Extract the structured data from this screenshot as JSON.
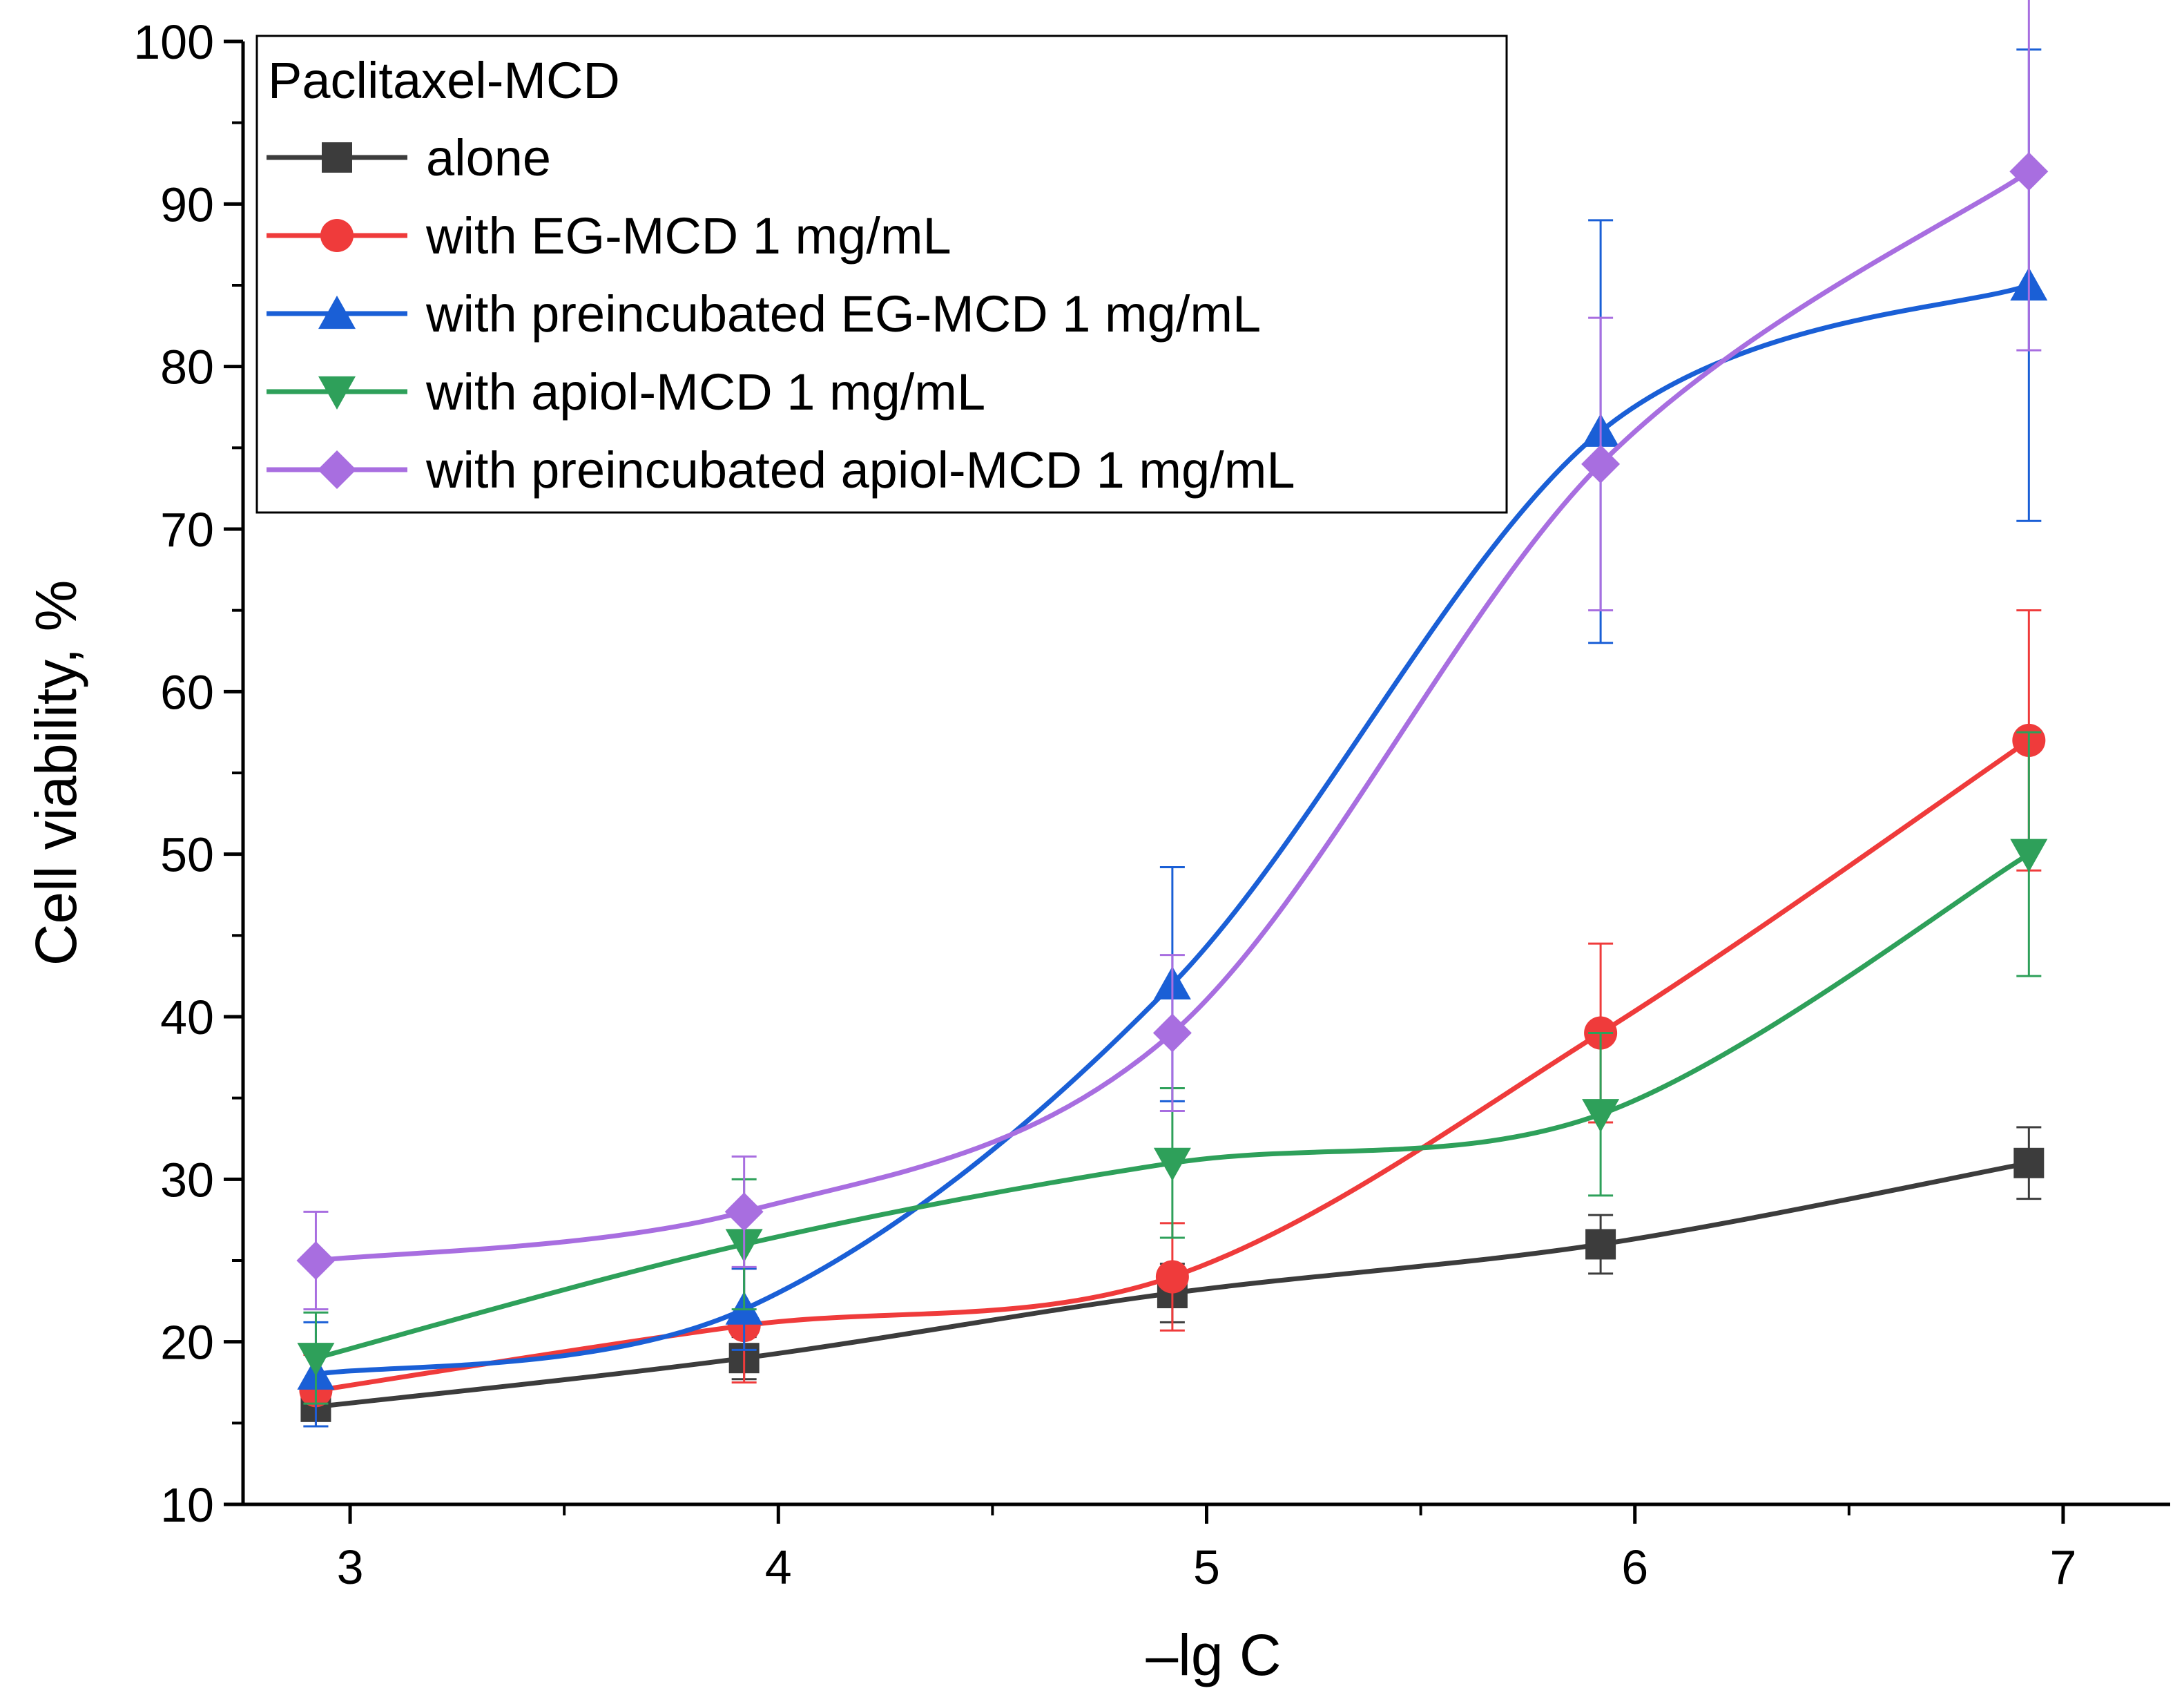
{
  "chart_data": {
    "type": "line",
    "title": "",
    "xlabel": "–lg C",
    "ylabel": "Cell viability, %",
    "xlim": [
      2.75,
      7.25
    ],
    "ylim": [
      10,
      100
    ],
    "x_ticks": [
      "3",
      "4",
      "5",
      "6",
      "7"
    ],
    "y_ticks": [
      "10",
      "20",
      "30",
      "40",
      "50",
      "60",
      "70",
      "80",
      "90",
      "100"
    ],
    "grid": false,
    "legend": {
      "position": "top-left",
      "title": "Paclitaxel-MCD"
    },
    "x": [
      2.92,
      3.92,
      4.92,
      5.92,
      6.92
    ],
    "series": [
      {
        "name": "alone",
        "color": "#3c3c3c",
        "marker": "square",
        "values": [
          16,
          19,
          23,
          26,
          31
        ],
        "errors": [
          1.2,
          1.3,
          1.8,
          1.8,
          2.2
        ]
      },
      {
        "name": "with EG-MCD 1 mg/mL",
        "color": "#ef3b3b",
        "marker": "circle",
        "values": [
          17,
          21,
          24,
          39,
          57
        ],
        "errors": [
          2.2,
          3.5,
          3.3,
          5.5,
          8
        ]
      },
      {
        "name": "with preincubated EG-MCD 1 mg/mL",
        "color": "#1a5fd6",
        "marker": "triangle-up",
        "values": [
          18,
          22,
          42,
          76,
          85
        ],
        "errors": [
          3.2,
          2.5,
          7.2,
          13,
          14.5
        ]
      },
      {
        "name": "with apiol-MCD 1 mg/mL",
        "color": "#2ea05a",
        "marker": "triangle-down",
        "values": [
          19,
          26,
          31,
          34,
          50
        ],
        "errors": [
          2.8,
          4,
          4.6,
          5,
          7.5
        ]
      },
      {
        "name": "with preincubated apiol-MCD 1 mg/mL",
        "color": "#a86ee0",
        "marker": "diamond",
        "values": [
          25,
          28,
          39,
          74,
          92
        ],
        "errors": [
          3,
          3.4,
          4.8,
          9,
          11
        ]
      }
    ]
  }
}
